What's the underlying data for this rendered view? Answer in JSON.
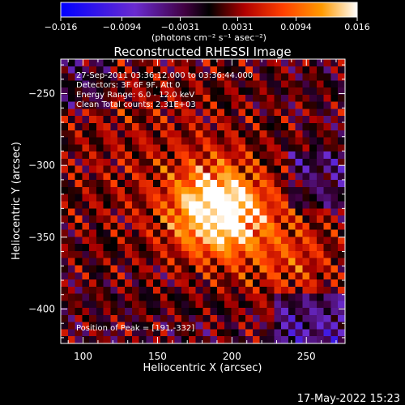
{
  "colorbar": {
    "tick_labels": [
      "−0.016",
      "−0.0094",
      "−0.0031",
      "0.0031",
      "0.0094",
      "0.016"
    ],
    "tick_values": [
      -0.016,
      -0.0094,
      -0.0031,
      0.0031,
      0.0094,
      0.016
    ],
    "range": [
      -0.016,
      0.016
    ],
    "colors": [
      "#0000ff",
      "#6a2bd0",
      "#400040",
      "#000000",
      "#b00000",
      "#ff4000",
      "#ff9a00",
      "#ffffff"
    ]
  },
  "chart_data": {
    "type": "heatmap",
    "title": "Reconstructed RHESSI Image",
    "units": "(photons cm⁻² s⁻¹ asec⁻²)",
    "xlabel": "Heliocentric X (arcsec)",
    "ylabel": "Heliocentric Y (arcsec)",
    "xlim": [
      85,
      276
    ],
    "ylim": [
      -424,
      -226
    ],
    "x_ticks": [
      100,
      150,
      200,
      250
    ],
    "y_ticks": [
      -250,
      -300,
      -350,
      -400
    ],
    "x_tick_labels": [
      "100",
      "150",
      "200",
      "250"
    ],
    "y_tick_labels": [
      "−250",
      "−300",
      "−350",
      "−400"
    ],
    "peak": [
      191,
      -332
    ],
    "annotations": [
      "27-Sep-2011 03:36:12.000 to 03:36:44.000",
      "Detectors: 3F 6F 9F, Att 0",
      "Energy Range: 6.0 - 12.0 keV",
      "Clean    Total counts: 2.31E+03"
    ],
    "peak_label": "Position of Peak = [191,-332]"
  },
  "footer": {
    "timestamp": "17-May-2022 15:23"
  }
}
